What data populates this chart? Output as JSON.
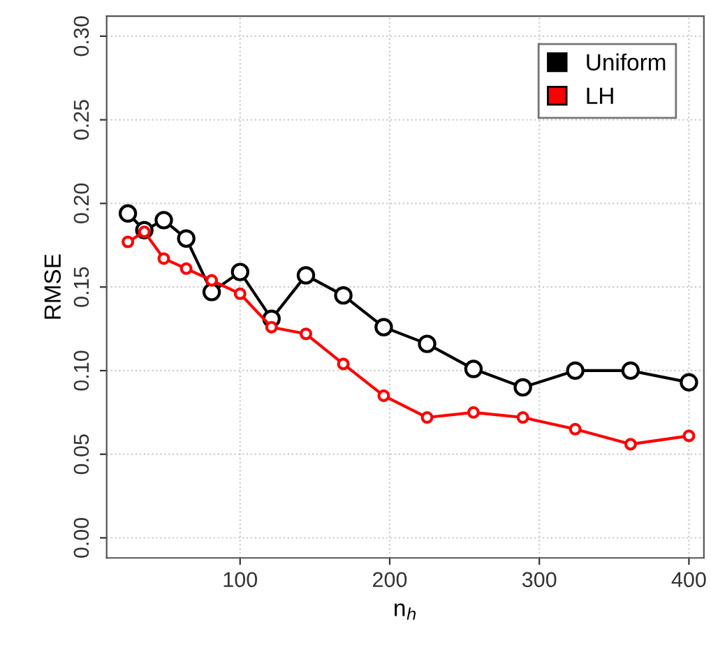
{
  "chart_data": {
    "type": "line",
    "xlabel": "n$_{h}$",
    "ylabel": "RMSE",
    "x": [
      25,
      36,
      49,
      64,
      81,
      100,
      121,
      144,
      169,
      196,
      225,
      256,
      289,
      324,
      361,
      400
    ],
    "series": [
      {
        "name": "Uniform",
        "color": "#000000",
        "values": [
          0.194,
          0.184,
          0.19,
          0.179,
          0.147,
          0.159,
          0.131,
          0.157,
          0.145,
          0.126,
          0.116,
          0.101,
          0.09,
          0.1,
          0.1,
          0.093
        ]
      },
      {
        "name": "LH",
        "color": "#ff0000",
        "values": [
          0.177,
          0.183,
          0.167,
          0.161,
          0.154,
          0.146,
          0.126,
          0.122,
          0.104,
          0.085,
          0.072,
          0.075,
          0.072,
          0.065,
          0.056,
          0.061
        ]
      }
    ],
    "xlim": [
      10.8,
      410
    ],
    "ylim": [
      -0.012,
      0.312
    ],
    "xticks": [
      100,
      200,
      300,
      400
    ],
    "yticks": [
      {
        "value": 0,
        "label": "0.00"
      },
      {
        "value": 0.05,
        "label": "0.05"
      },
      {
        "value": 0.1,
        "label": "0.10"
      },
      {
        "value": 0.15,
        "label": "0.15"
      },
      {
        "value": 0.2,
        "label": "0.20"
      },
      {
        "value": 0.25,
        "label": "0.25"
      },
      {
        "value": 0.3,
        "label": "0.30"
      }
    ],
    "grid": true,
    "legend": "top right",
    "marker": "circle",
    "line_style": "solid"
  }
}
